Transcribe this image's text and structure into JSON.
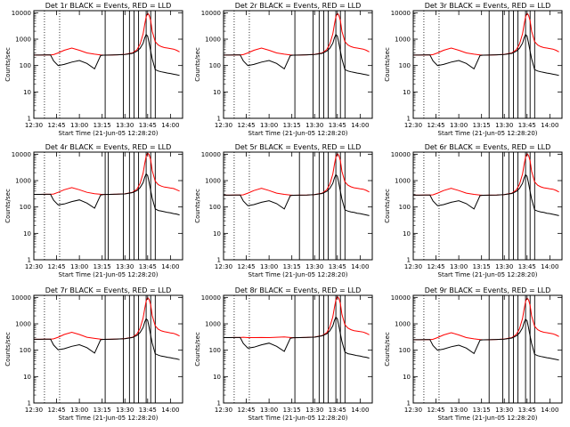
{
  "chart_data": {
    "type": "line",
    "layout": "3x3 grid of panels",
    "ylabel": "Counts/sec",
    "xlabel": "Start Time (21-Jun-05 12:28:20)",
    "x_ticks": [
      "12:30",
      "12:45",
      "13:00",
      "13:15",
      "13:30",
      "13:45",
      "14:00"
    ],
    "x_ticks_minutes": [
      30,
      45,
      60,
      75,
      90,
      105,
      120
    ],
    "xlim_minutes": [
      30,
      128
    ],
    "y_scale": "log",
    "ylim": [
      1,
      12000
    ],
    "y_ticks": [
      "1",
      "10",
      "100",
      "1000",
      "10000"
    ],
    "y_tick_values": [
      1,
      10,
      100,
      1000,
      10000
    ],
    "dotted_vlines_minutes": [
      37,
      47
    ],
    "series_colors": {
      "events": "#000000",
      "lld": "#ff0000"
    },
    "x_minutes": [
      30,
      34,
      38,
      41,
      43,
      46,
      50,
      55,
      60,
      65,
      70,
      74,
      76,
      80,
      85,
      90,
      95,
      98,
      100,
      102,
      103,
      104,
      105,
      106,
      107,
      108,
      110,
      112,
      114,
      116,
      118,
      120,
      122,
      124,
      126
    ],
    "panels": [
      {
        "title": "Det 1r BLACK = Events, RED = LLD",
        "lld": [
          250,
          250,
          252,
          253,
          260,
          300,
          380,
          460,
          380,
          300,
          270,
          252,
          248,
          250,
          255,
          265,
          300,
          400,
          650,
          1600,
          3500,
          7000,
          9500,
          8000,
          5000,
          2000,
          800,
          600,
          520,
          480,
          460,
          440,
          420,
          380,
          330
        ],
        "events": [
          250,
          250,
          252,
          253,
          150,
          100,
          110,
          135,
          155,
          120,
          75,
          240,
          248,
          250,
          255,
          262,
          290,
          350,
          450,
          700,
          1100,
          1500,
          1300,
          700,
          350,
          180,
          70,
          62,
          58,
          55,
          52,
          50,
          47,
          45,
          42
        ],
        "vlines": [
          77,
          89,
          93,
          96,
          99,
          104,
          107,
          110
        ]
      },
      {
        "title": "Det 2r BLACK = Events, RED = LLD",
        "lld": [
          250,
          250,
          252,
          253,
          260,
          300,
          380,
          460,
          380,
          300,
          270,
          252,
          248,
          250,
          255,
          265,
          300,
          400,
          650,
          1600,
          3500,
          7000,
          9500,
          8000,
          5000,
          2000,
          800,
          600,
          520,
          480,
          460,
          440,
          420,
          380,
          330
        ],
        "events": [
          250,
          250,
          252,
          253,
          150,
          100,
          110,
          135,
          155,
          120,
          75,
          240,
          248,
          250,
          255,
          262,
          290,
          350,
          450,
          700,
          1100,
          1500,
          1300,
          700,
          350,
          180,
          70,
          62,
          58,
          55,
          52,
          50,
          47,
          45,
          42
        ],
        "vlines": [
          77,
          89,
          93,
          96,
          99,
          104,
          107,
          110
        ]
      },
      {
        "title": "Det 3r BLACK = Events, RED = LLD",
        "lld": [
          250,
          250,
          252,
          253,
          260,
          300,
          380,
          460,
          380,
          300,
          270,
          252,
          248,
          250,
          255,
          265,
          300,
          400,
          650,
          1600,
          3500,
          7000,
          9500,
          8000,
          5000,
          2000,
          800,
          600,
          520,
          480,
          460,
          440,
          420,
          380,
          330
        ],
        "events": [
          250,
          250,
          252,
          253,
          150,
          100,
          110,
          135,
          155,
          120,
          75,
          240,
          248,
          250,
          255,
          262,
          290,
          350,
          450,
          700,
          1100,
          1500,
          1300,
          700,
          350,
          180,
          70,
          62,
          58,
          55,
          52,
          50,
          47,
          45,
          42
        ],
        "vlines": [
          80,
          89,
          93,
          96,
          99,
          104,
          107,
          110
        ]
      },
      {
        "title": "Det 4r BLACK = Events, RED = LLD",
        "lld": [
          300,
          300,
          302,
          303,
          310,
          360,
          450,
          540,
          450,
          360,
          320,
          302,
          298,
          300,
          305,
          315,
          360,
          480,
          780,
          1900,
          4200,
          8400,
          11000,
          9500,
          6000,
          2400,
          950,
          700,
          620,
          570,
          550,
          520,
          500,
          450,
          400
        ],
        "events": [
          300,
          300,
          302,
          303,
          180,
          120,
          130,
          160,
          185,
          140,
          90,
          285,
          298,
          300,
          305,
          312,
          350,
          420,
          540,
          840,
          1300,
          1800,
          1550,
          840,
          420,
          215,
          85,
          74,
          70,
          66,
          62,
          60,
          56,
          54,
          50
        ],
        "vlines": [
          77,
          79,
          89,
          93,
          96,
          99,
          104,
          107,
          110
        ]
      },
      {
        "title": "Det 5r BLACK = Events, RED = LLD",
        "lld": [
          280,
          280,
          282,
          283,
          290,
          335,
          420,
          510,
          420,
          335,
          300,
          282,
          278,
          280,
          285,
          295,
          335,
          445,
          720,
          1780,
          3900,
          7800,
          10500,
          8900,
          5600,
          2250,
          890,
          670,
          580,
          535,
          515,
          490,
          470,
          425,
          370
        ],
        "events": [
          280,
          280,
          282,
          283,
          168,
          112,
          123,
          151,
          173,
          134,
          84,
          269,
          278,
          280,
          285,
          293,
          325,
          392,
          504,
          784,
          1230,
          1680,
          1450,
          784,
          392,
          200,
          78,
          70,
          65,
          62,
          58,
          56,
          53,
          50,
          47
        ],
        "vlines": [
          80,
          89,
          93,
          96,
          99,
          104,
          107,
          110
        ]
      },
      {
        "title": "Det 6r BLACK = Events, RED = LLD",
        "lld": [
          280,
          280,
          282,
          283,
          290,
          335,
          420,
          510,
          420,
          335,
          300,
          282,
          278,
          280,
          285,
          295,
          335,
          445,
          720,
          1780,
          3900,
          7800,
          10500,
          8900,
          5600,
          2250,
          890,
          670,
          580,
          535,
          515,
          490,
          470,
          425,
          370
        ],
        "events": [
          280,
          280,
          282,
          283,
          168,
          112,
          123,
          151,
          173,
          134,
          84,
          269,
          278,
          280,
          285,
          293,
          325,
          392,
          504,
          784,
          1230,
          1680,
          1450,
          784,
          392,
          200,
          78,
          70,
          65,
          62,
          58,
          56,
          53,
          50,
          47
        ],
        "vlines": [
          80,
          89,
          93,
          96,
          99,
          104,
          107,
          110
        ]
      },
      {
        "title": "Det 7r BLACK = Events, RED = LLD",
        "lld": [
          260,
          260,
          262,
          263,
          270,
          310,
          395,
          480,
          395,
          310,
          280,
          262,
          258,
          260,
          265,
          275,
          310,
          415,
          675,
          1660,
          3640,
          7280,
          9880,
          8320,
          5200,
          2080,
          830,
          625,
          540,
          500,
          480,
          455,
          435,
          395,
          345
        ],
        "events": [
          260,
          260,
          262,
          263,
          156,
          104,
          114,
          140,
          161,
          125,
          78,
          250,
          258,
          260,
          265,
          272,
          302,
          364,
          468,
          728,
          1144,
          1560,
          1350,
          728,
          364,
          187,
          73,
          65,
          60,
          57,
          54,
          52,
          49,
          47,
          44
        ],
        "vlines": [
          77,
          89,
          93,
          96,
          99,
          104,
          107,
          110
        ]
      },
      {
        "title": "Det 8r BLACK = Events, RED = LLD",
        "lld": [
          300,
          300,
          302,
          303,
          310,
          300,
          300,
          302,
          300,
          310,
          320,
          302,
          298,
          300,
          305,
          315,
          360,
          460,
          750,
          1850,
          4000,
          8000,
          10800,
          9200,
          5800,
          2300,
          920,
          690,
          600,
          550,
          530,
          505,
          485,
          440,
          385
        ],
        "events": [
          300,
          300,
          302,
          303,
          180,
          120,
          130,
          160,
          185,
          140,
          90,
          285,
          298,
          300,
          305,
          312,
          350,
          420,
          540,
          840,
          1300,
          1800,
          1550,
          840,
          420,
          215,
          85,
          74,
          70,
          66,
          62,
          60,
          56,
          54,
          50
        ],
        "vlines": [
          77,
          89,
          93,
          96,
          99,
          104,
          107,
          110
        ]
      },
      {
        "title": "Det 9r BLACK = Events, RED = LLD",
        "lld": [
          250,
          250,
          252,
          253,
          260,
          300,
          380,
          460,
          380,
          300,
          270,
          252,
          248,
          250,
          255,
          265,
          300,
          400,
          650,
          1600,
          3500,
          7000,
          9500,
          8000,
          5000,
          2000,
          800,
          600,
          520,
          480,
          460,
          440,
          420,
          380,
          330
        ],
        "events": [
          250,
          250,
          252,
          253,
          150,
          100,
          110,
          135,
          155,
          120,
          75,
          240,
          248,
          250,
          255,
          262,
          290,
          350,
          450,
          700,
          1100,
          1500,
          1300,
          700,
          350,
          180,
          70,
          62,
          58,
          55,
          52,
          50,
          47,
          45,
          42
        ],
        "vlines": [
          80,
          89,
          93,
          96,
          99,
          104,
          107,
          110
        ]
      }
    ]
  }
}
